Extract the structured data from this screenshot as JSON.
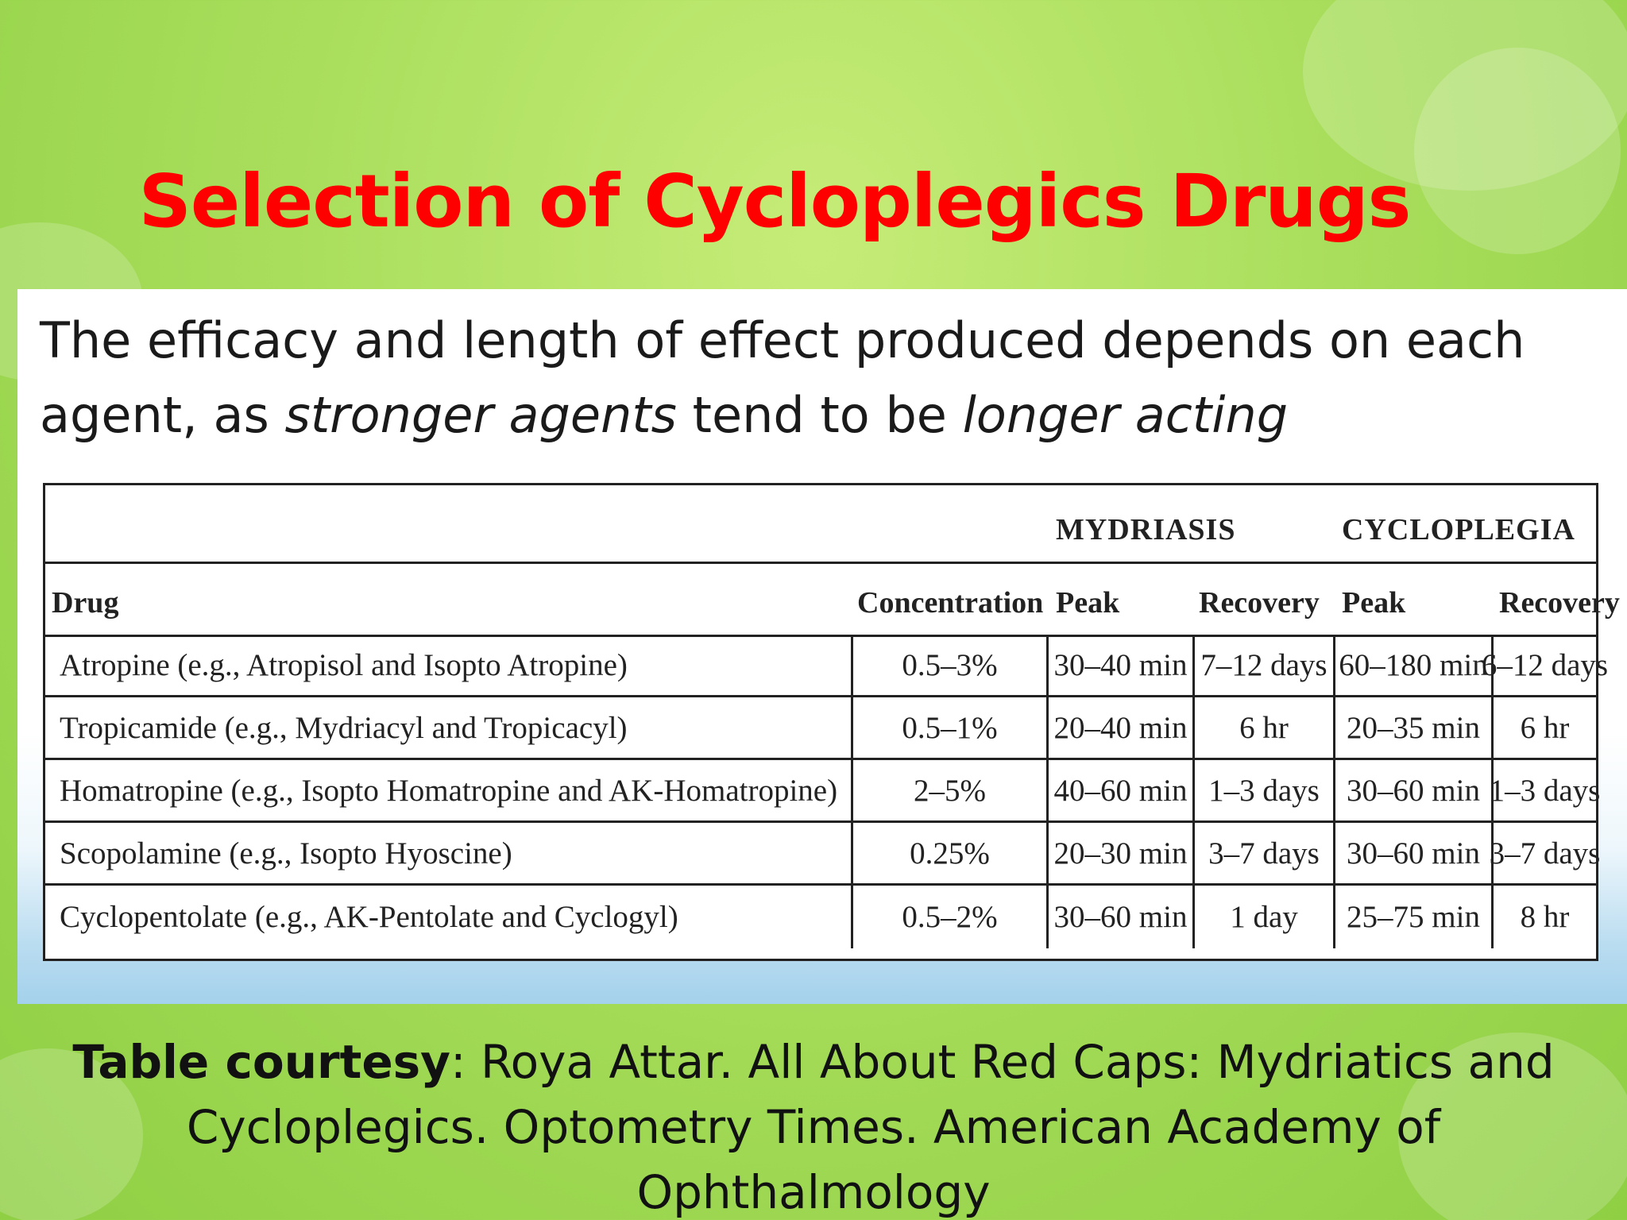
{
  "slide": {
    "title": "Selection of Cycloplegics Drugs",
    "colors": {
      "title": "#ff0000",
      "background": "#a9de5c",
      "panel": "#ffffff"
    }
  },
  "intro": {
    "part1": "The efficacy and length of effect produced depends on each agent, as ",
    "italic1": "stronger agents",
    "part2": " tend to be ",
    "italic2": "longer acting"
  },
  "table": {
    "group_headers": {
      "mydriasis": "MYDRIASIS",
      "cycloplegia": "CYCLOPLEGIA"
    },
    "columns": {
      "drug": "Drug",
      "concentration": "Concentration",
      "mydriasis_peak": "Peak",
      "mydriasis_recovery": "Recovery",
      "cycloplegia_peak": "Peak",
      "cycloplegia_recovery": "Recovery"
    },
    "rows": [
      {
        "drug": "Atropine (e.g., Atropisol and Isopto Atropine)",
        "concentration": "0.5–3%",
        "mydriasis_peak": "30–40 min",
        "mydriasis_recovery": "7–12 days",
        "cycloplegia_peak": "60–180 min",
        "cycloplegia_recovery": "6–12 days"
      },
      {
        "drug": "Tropicamide (e.g., Mydriacyl and Tropicacyl)",
        "concentration": "0.5–1%",
        "mydriasis_peak": "20–40 min",
        "mydriasis_recovery": "6 hr",
        "cycloplegia_peak": "20–35 min",
        "cycloplegia_recovery": "6 hr"
      },
      {
        "drug": "Homatropine (e.g., Isopto Homatropine and AK-Homatropine)",
        "concentration": "2–5%",
        "mydriasis_peak": "40–60 min",
        "mydriasis_recovery": "1–3 days",
        "cycloplegia_peak": "30–60 min",
        "cycloplegia_recovery": "1–3 days"
      },
      {
        "drug": "Scopolamine (e.g., Isopto Hyoscine)",
        "concentration": "0.25%",
        "mydriasis_peak": "20–30 min",
        "mydriasis_recovery": "3–7 days",
        "cycloplegia_peak": "30–60 min",
        "cycloplegia_recovery": "3–7 days"
      },
      {
        "drug": "Cyclopentolate (e.g., AK-Pentolate and Cyclogyl)",
        "concentration": "0.5–2%",
        "mydriasis_peak": "30–60 min",
        "mydriasis_recovery": "1 day",
        "cycloplegia_peak": "25–75 min",
        "cycloplegia_recovery": "8 hr"
      }
    ]
  },
  "caption": {
    "label": "Table courtesy",
    "line1": ": Roya Attar. All About Red Caps: Mydriatics and",
    "line2": "Cycloplegics. Optometry Times. American Academy of",
    "line3": "Ophthalmology"
  }
}
